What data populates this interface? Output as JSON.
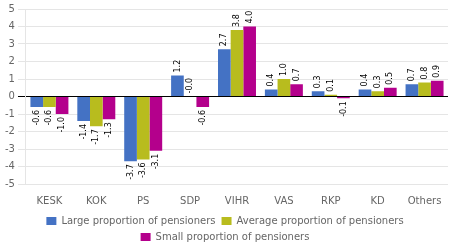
{
  "chart_data": {
    "type": "bar",
    "categories": [
      "KESK",
      "KOK",
      "PS",
      "SDP",
      "VIHR",
      "VAS",
      "RKP",
      "KD",
      "Others"
    ],
    "series": [
      {
        "name": "Large proportion of pensioners",
        "color": "#4472c4",
        "values": [
          -0.6,
          -1.4,
          -3.7,
          1.2,
          2.7,
          0.4,
          0.3,
          0.4,
          0.7
        ],
        "value_labels": [
          "-0.6",
          "-1.4",
          "-3.7",
          "1.2",
          "2.7",
          "0.4",
          "0.3",
          "0.4",
          "0.7"
        ]
      },
      {
        "name": "Average proportion of pensioners",
        "color": "#b8bc1e",
        "values": [
          -0.6,
          -1.7,
          -3.6,
          -0.0,
          3.8,
          1.0,
          0.1,
          0.3,
          0.8
        ],
        "value_labels": [
          "-0.6",
          "-1.7",
          "-3.6",
          "-0.0",
          "3.8",
          "1.0",
          "0.1",
          "0.3",
          "0.8"
        ]
      },
      {
        "name": "Small proportion of pensioners",
        "color": "#b4008c",
        "values": [
          -1.0,
          -1.3,
          -3.1,
          -0.6,
          4.0,
          0.7,
          -0.1,
          0.5,
          0.9
        ],
        "value_labels": [
          "-1.0",
          "-1.3",
          "-3.1",
          "-0.6",
          "4.0",
          "0.7",
          "-0.1",
          "0.5",
          "0.9"
        ]
      }
    ],
    "ylim": [
      -5,
      5
    ],
    "yticks": [
      -5,
      -4,
      -3,
      -2,
      -1,
      0,
      1,
      2,
      3,
      4,
      5
    ],
    "grid": true,
    "legend": "bottom",
    "data_labels": true
  }
}
